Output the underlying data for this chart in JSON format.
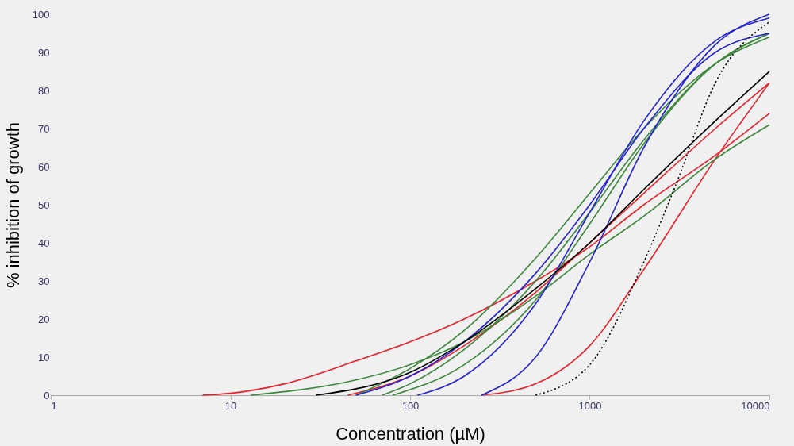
{
  "chart_data": {
    "type": "line",
    "xlabel": "Concentration (µM)",
    "ylabel": "% inhibition of growth",
    "log": "x",
    "xlim": [
      1,
      10000
    ],
    "xticks": [
      1,
      10,
      100,
      1000,
      10000
    ],
    "ylim": [
      0,
      100
    ],
    "yticks": [
      0,
      10,
      20,
      30,
      40,
      50,
      60,
      70,
      80,
      90,
      100
    ],
    "grid": false,
    "legend": false,
    "marker": "none",
    "series": [
      {
        "color": "#e8202a",
        "x": [
          7,
          10,
          20,
          50,
          100,
          200,
          500,
          1000,
          2000,
          5000,
          10000
        ],
        "values": [
          0,
          0.5,
          3,
          9,
          14,
          20,
          30,
          39,
          50,
          63,
          74
        ]
      },
      {
        "color": "#e8202a",
        "x": [
          45,
          100,
          200,
          500,
          1000,
          2000,
          5000,
          10000
        ],
        "values": [
          0,
          5,
          13,
          27,
          40,
          53,
          70,
          82
        ]
      },
      {
        "color": "#e8202a",
        "x": [
          250,
          500,
          1000,
          2000,
          5000,
          10000
        ],
        "values": [
          0,
          3,
          13,
          33,
          62,
          82
        ]
      },
      {
        "color": "#3a873a",
        "x": [
          13,
          50,
          100,
          200,
          500,
          1000,
          2000,
          5000,
          10000
        ],
        "values": [
          0,
          4,
          8,
          14,
          26,
          37,
          47,
          62,
          71
        ]
      },
      {
        "color": "#3a873a",
        "x": [
          50,
          100,
          200,
          500,
          1000,
          2000,
          5000,
          10000
        ],
        "values": [
          0,
          7,
          17,
          36,
          53,
          70,
          87,
          94
        ]
      },
      {
        "color": "#3a873a",
        "x": [
          70,
          100,
          200,
          500,
          1000,
          2000,
          5000,
          10000
        ],
        "values": [
          0,
          3,
          12,
          30,
          48,
          67,
          87,
          95
        ]
      },
      {
        "color": "#3a873a",
        "x": [
          80,
          200,
          500,
          1000,
          2000,
          5000,
          10000
        ],
        "values": [
          0,
          8,
          25,
          45,
          66,
          87,
          95
        ]
      },
      {
        "color": "#2323d0",
        "x": [
          50,
          100,
          200,
          500,
          1000,
          2000,
          5000,
          10000
        ],
        "values": [
          0,
          5,
          14,
          32,
          50,
          70,
          90,
          95
        ]
      },
      {
        "color": "#2323d0",
        "x": [
          110,
          200,
          500,
          1000,
          2000,
          5000,
          10000
        ],
        "values": [
          0,
          5,
          24,
          48,
          72,
          93,
          99
        ]
      },
      {
        "color": "#2323d0",
        "x": [
          250,
          500,
          1000,
          2000,
          5000,
          10000
        ],
        "values": [
          0,
          10,
          35,
          65,
          92,
          100
        ]
      },
      {
        "color": "#000000",
        "x": [
          30,
          100,
          200,
          500,
          1000,
          2000,
          5000,
          10000
        ],
        "values": [
          0,
          6,
          14,
          28,
          40,
          54,
          72,
          85
        ]
      },
      {
        "color": "#000000",
        "line_style": "dotted",
        "x": [
          500,
          1000,
          2000,
          3000,
          5000,
          10000
        ],
        "values": [
          0,
          8,
          35,
          55,
          82,
          98
        ]
      }
    ]
  }
}
